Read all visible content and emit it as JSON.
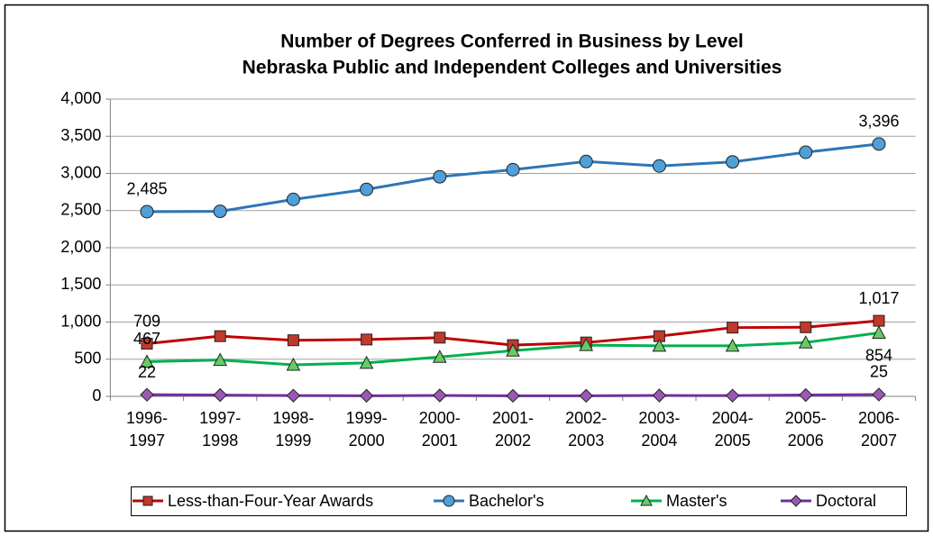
{
  "chart_data": {
    "type": "line",
    "title": "Number of Degrees Conferred in Business by Level",
    "subtitle": "Nebraska Public and Independent Colleges and Universities",
    "categories": [
      "1996-1997",
      "1997-1998",
      "1998-1999",
      "1999-2000",
      "2000-2001",
      "2001-2002",
      "2002-2003",
      "2003-2004",
      "2004-2005",
      "2005-2006",
      "2006-2007"
    ],
    "series": [
      {
        "name": "Less-than-Four-Year Awards",
        "color": "#c00000",
        "marker": "square",
        "values": [
          709,
          810,
          755,
          765,
          790,
          690,
          725,
          810,
          925,
          930,
          1017
        ],
        "value_labels": [
          "709",
          null,
          null,
          null,
          null,
          null,
          null,
          null,
          null,
          null,
          "1,017"
        ]
      },
      {
        "name": "Bachelor's",
        "color": "#2e75b6",
        "marker": "circle",
        "values": [
          2485,
          2490,
          2650,
          2785,
          2955,
          3050,
          3160,
          3100,
          3155,
          3285,
          3396
        ],
        "value_labels": [
          "2,485",
          null,
          null,
          null,
          null,
          null,
          null,
          null,
          null,
          null,
          "3,396"
        ]
      },
      {
        "name": "Master's",
        "color": "#00b050",
        "marker": "triangle",
        "values": [
          467,
          490,
          425,
          450,
          530,
          615,
          690,
          680,
          680,
          725,
          854
        ],
        "value_labels": [
          "467",
          null,
          null,
          null,
          null,
          null,
          null,
          null,
          null,
          null,
          "854"
        ]
      },
      {
        "name": "Doctoral",
        "color": "#7030a0",
        "marker": "diamond",
        "values": [
          22,
          18,
          10,
          8,
          12,
          8,
          8,
          12,
          10,
          18,
          25
        ],
        "value_labels": [
          "22",
          null,
          null,
          null,
          null,
          null,
          null,
          null,
          null,
          null,
          "25"
        ]
      }
    ],
    "ylim": [
      0,
      4000
    ],
    "yticks": [
      0,
      {
        "value": 500,
        "label": "500"
      },
      {
        "value": 1000,
        "label": "1,000"
      },
      {
        "value": 1500,
        "label": "1,500"
      },
      {
        "value": 2000,
        "label": "2,000"
      },
      {
        "value": 2500,
        "label": "2,500"
      },
      {
        "value": 3000,
        "label": "3,000"
      },
      {
        "value": 3500,
        "label": "3,500"
      },
      {
        "value": 4000,
        "label": "4,000"
      }
    ],
    "grid": true,
    "legend": "bottom"
  }
}
